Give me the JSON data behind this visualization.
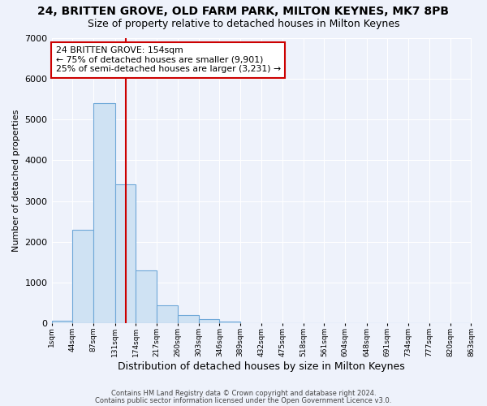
{
  "title": "24, BRITTEN GROVE, OLD FARM PARK, MILTON KEYNES, MK7 8PB",
  "subtitle": "Size of property relative to detached houses in Milton Keynes",
  "xlabel": "Distribution of detached houses by size in Milton Keynes",
  "ylabel": "Number of detached properties",
  "bar_values": [
    75,
    2300,
    5400,
    3400,
    1300,
    450,
    200,
    100,
    50,
    0,
    0,
    0,
    0,
    0,
    0,
    0,
    0,
    0,
    0,
    0
  ],
  "bin_edges": [
    1,
    44,
    87,
    131,
    174,
    217,
    260,
    303,
    346,
    389,
    432,
    475,
    518,
    561,
    604,
    648,
    691,
    734,
    777,
    820,
    863
  ],
  "x_tick_labels": [
    "1sqm",
    "44sqm",
    "87sqm",
    "131sqm",
    "174sqm",
    "217sqm",
    "260sqm",
    "303sqm",
    "346sqm",
    "389sqm",
    "432sqm",
    "475sqm",
    "518sqm",
    "561sqm",
    "604sqm",
    "648sqm",
    "691sqm",
    "734sqm",
    "777sqm",
    "820sqm",
    "863sqm"
  ],
  "bar_color": "#cfe2f3",
  "bar_edge_color": "#6fa8d8",
  "red_line_x": 154,
  "annotation_line1": "24 BRITTEN GROVE: 154sqm",
  "annotation_line2": "← 75% of detached houses are smaller (9,901)",
  "annotation_line3": "25% of semi-detached houses are larger (3,231) →",
  "annotation_box_color": "#ffffff",
  "annotation_box_edge_color": "#cc0000",
  "red_line_color": "#cc0000",
  "ylim": [
    0,
    7000
  ],
  "yticks": [
    0,
    1000,
    2000,
    3000,
    4000,
    5000,
    6000,
    7000
  ],
  "background_color": "#eef2fb",
  "grid_color": "#ffffff",
  "footer_line1": "Contains HM Land Registry data © Crown copyright and database right 2024.",
  "footer_line2": "Contains public sector information licensed under the Open Government Licence v3.0.",
  "title_fontsize": 10,
  "subtitle_fontsize": 9
}
